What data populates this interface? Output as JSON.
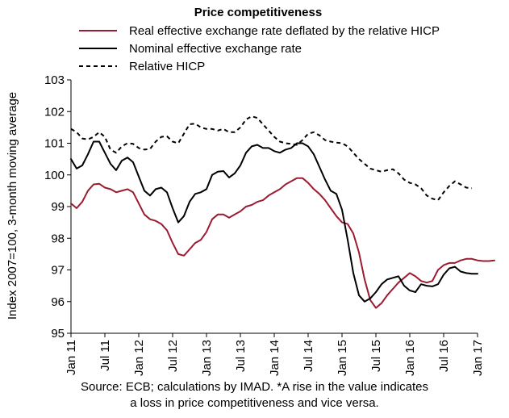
{
  "chart_data": {
    "type": "line",
    "title": "Price competitiveness",
    "ylabel": "Index 2007=100, 3-month moving average",
    "xlabel": "",
    "ylim": [
      95,
      103
    ],
    "yticks": [
      95,
      96,
      97,
      98,
      99,
      100,
      101,
      102,
      103
    ],
    "xtick_labels": [
      "Jan 11",
      "Jul 11",
      "Jan 12",
      "Jul 12",
      "Jan 13",
      "Jul 13",
      "Jan 14",
      "Jul 14",
      "Jan 15",
      "Jul 15",
      "Jan 16",
      "Jul 16",
      "Jan 17"
    ],
    "x_start": "2011-01",
    "x_end": "2017-01",
    "legend_position": "top",
    "grid": false,
    "series": [
      {
        "name": "Real effective exchange rate deflated by the relative HICP",
        "color": "#9b1b30",
        "dash": "solid",
        "start": "2011-01",
        "values": [
          99.1,
          98.95,
          99.15,
          99.5,
          99.7,
          99.72,
          99.6,
          99.55,
          99.45,
          99.5,
          99.55,
          99.45,
          99.1,
          98.75,
          98.6,
          98.55,
          98.45,
          98.25,
          97.85,
          97.5,
          97.45,
          97.65,
          97.85,
          97.95,
          98.2,
          98.6,
          98.75,
          98.75,
          98.65,
          98.75,
          98.85,
          99.0,
          99.05,
          99.15,
          99.2,
          99.35,
          99.45,
          99.55,
          99.7,
          99.8,
          99.9,
          99.9,
          99.75,
          99.55,
          99.4,
          99.2,
          98.95,
          98.7,
          98.5,
          98.45,
          98.15,
          97.55,
          96.7,
          96.05,
          95.8,
          95.95,
          96.2,
          96.4,
          96.6,
          96.75,
          96.9,
          96.8,
          96.65,
          96.6,
          96.65,
          97.0,
          97.15,
          97.22,
          97.22,
          97.3,
          97.35,
          97.35,
          97.3,
          97.28,
          97.28,
          97.3
        ]
      },
      {
        "name": "Nominal effective exchange rate",
        "color": "#000000",
        "dash": "solid",
        "start": "2011-01",
        "values": [
          100.5,
          100.2,
          100.3,
          100.65,
          101.05,
          101.05,
          100.7,
          100.35,
          100.15,
          100.45,
          100.55,
          100.4,
          99.95,
          99.5,
          99.35,
          99.55,
          99.6,
          99.45,
          98.95,
          98.5,
          98.7,
          99.15,
          99.4,
          99.45,
          99.55,
          100.0,
          100.1,
          100.12,
          99.92,
          100.05,
          100.3,
          100.7,
          100.9,
          100.95,
          100.85,
          100.85,
          100.75,
          100.7,
          100.8,
          100.85,
          101.0,
          101.0,
          100.9,
          100.65,
          100.25,
          99.85,
          99.5,
          99.4,
          98.9,
          97.95,
          96.9,
          96.2,
          96.0,
          96.1,
          96.3,
          96.55,
          96.7,
          96.75,
          96.8,
          96.5,
          96.35,
          96.3,
          96.55,
          96.5,
          96.48,
          96.55,
          96.85,
          97.05,
          97.1,
          96.95,
          96.9,
          96.88,
          96.88
        ]
      },
      {
        "name": "Relative HICP",
        "color": "#000000",
        "dash": "dashed",
        "start": "2011-01",
        "values": [
          101.45,
          101.35,
          101.15,
          101.12,
          101.2,
          101.35,
          101.2,
          100.8,
          100.7,
          100.9,
          101.0,
          100.98,
          100.85,
          100.8,
          100.82,
          101.05,
          101.2,
          101.22,
          101.05,
          101.0,
          101.3,
          101.6,
          101.62,
          101.5,
          101.45,
          101.45,
          101.4,
          101.45,
          101.35,
          101.35,
          101.5,
          101.75,
          101.85,
          101.8,
          101.6,
          101.4,
          101.2,
          101.05,
          101.0,
          100.98,
          100.95,
          101.1,
          101.3,
          101.35,
          101.25,
          101.1,
          101.05,
          101.02,
          101.0,
          100.9,
          100.7,
          100.5,
          100.35,
          100.2,
          100.15,
          100.1,
          100.15,
          100.18,
          100.05,
          99.85,
          99.75,
          99.7,
          99.58,
          99.35,
          99.25,
          99.2,
          99.45,
          99.65,
          99.8,
          99.7,
          99.6,
          99.58
        ]
      }
    ]
  },
  "source_lines": [
    "Source: ECB; calculations by IMAD. *A rise in the value indicates",
    "a loss in price competitiveness and vice versa."
  ]
}
